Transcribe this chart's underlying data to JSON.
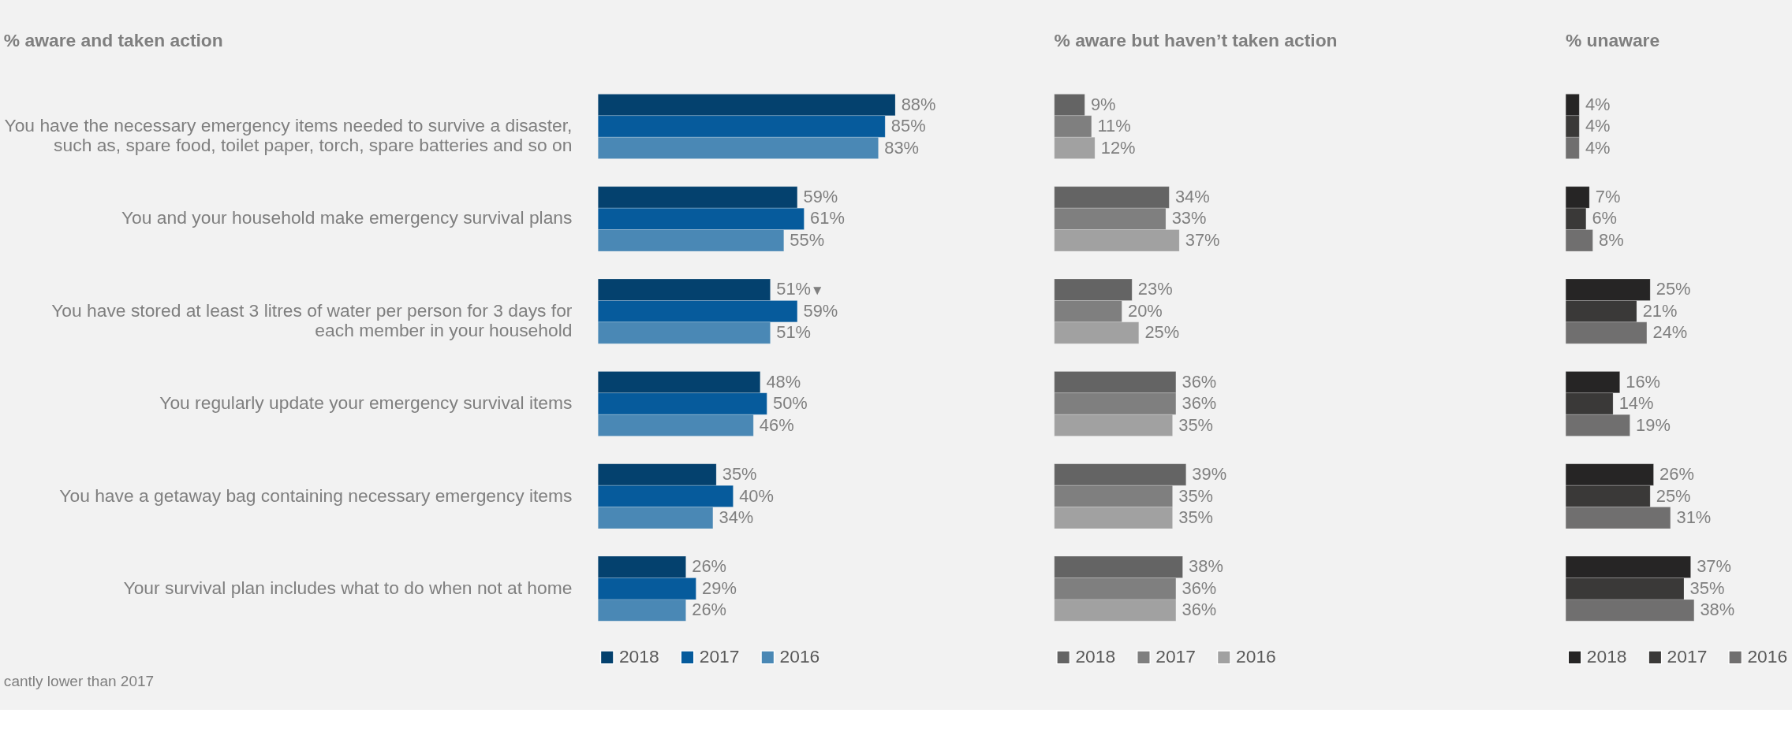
{
  "chart_data": [
    {
      "type": "bar",
      "orientation": "horizontal",
      "title": "% aware and taken action",
      "categories": [
        "You have the necessary emergency items needed to survive a disaster, such as, spare food, toilet paper, torch, spare batteries and so on",
        "You and your household make emergency survival plans",
        "You have stored at least 3 litres of water per person for 3 days for each member in your household",
        "You regularly update your emergency survival items",
        "You have a getaway bag containing necessary emergency items",
        "Your survival plan includes what to do when not at home"
      ],
      "series": [
        {
          "name": "2018",
          "color": "#04416e",
          "values": [
            88,
            59,
            51,
            48,
            35,
            26
          ],
          "value_labels": [
            "88%",
            "59%",
            "51%",
            "48%",
            "35%",
            "26%"
          ]
        },
        {
          "name": "2017",
          "color": "#065b9c",
          "values": [
            85,
            61,
            59,
            50,
            40,
            29
          ],
          "value_labels": [
            "85%",
            "61%",
            "59%",
            "50%",
            "40%",
            "29%"
          ]
        },
        {
          "name": "2016",
          "color": "#4a88b5",
          "values": [
            83,
            55,
            51,
            46,
            34,
            26
          ],
          "value_labels": [
            "83%",
            "55%",
            "51%",
            "46%",
            "34%",
            "26%"
          ]
        }
      ],
      "tick_labels": "y",
      "legend": "bottom",
      "grid": false,
      "annotations": [
        "▼",
        "cantly lower than 2017"
      ]
    },
    {
      "type": "bar",
      "orientation": "horizontal",
      "title": "% aware but haven’t taken action",
      "categories": [
        null,
        null,
        null,
        null,
        null,
        null
      ],
      "series": [
        {
          "name": "2018",
          "color": "#646464",
          "values": [
            9,
            34,
            23,
            36,
            39,
            38
          ],
          "value_labels": [
            "9%",
            "34%",
            "23%",
            "36%",
            "39%",
            "38%"
          ]
        },
        {
          "name": "2017",
          "color": "#7f7f7f",
          "values": [
            11,
            33,
            20,
            36,
            35,
            36
          ],
          "value_labels": [
            "11%",
            "33%",
            "20%",
            "36%",
            "35%",
            "36%"
          ]
        },
        {
          "name": "2016",
          "color": "#a1a1a1",
          "values": [
            12,
            37,
            25,
            35,
            35,
            36
          ],
          "value_labels": [
            "12%",
            "37%",
            "25%",
            "35%",
            "35%",
            "36%"
          ]
        }
      ],
      "tick_labels": false,
      "legend": "bottom",
      "grid": false
    },
    {
      "type": "bar",
      "orientation": "horizontal",
      "title": "% unaware",
      "categories": [
        null,
        null,
        null,
        null,
        null,
        null
      ],
      "series": [
        {
          "name": "2018",
          "color": "#262525",
          "values": [
            4,
            7,
            25,
            16,
            26,
            37
          ],
          "value_labels": [
            "4%",
            "7%",
            "25%",
            "16%",
            "26%",
            "37%"
          ]
        },
        {
          "name": "2017",
          "color": "#3a3938",
          "values": [
            4,
            6,
            21,
            14,
            25,
            35
          ],
          "value_labels": [
            "4%",
            "6%",
            "21%",
            "14%",
            "25%",
            "35%"
          ]
        },
        {
          "name": "2016",
          "color": "#706f6f",
          "values": [
            4,
            8,
            24,
            19,
            31,
            38
          ],
          "value_labels": [
            "4%",
            "8%",
            "24%",
            "19%",
            "31%",
            "38%"
          ]
        }
      ],
      "tick_labels": false,
      "legend": "bottom",
      "grid": false
    }
  ]
}
